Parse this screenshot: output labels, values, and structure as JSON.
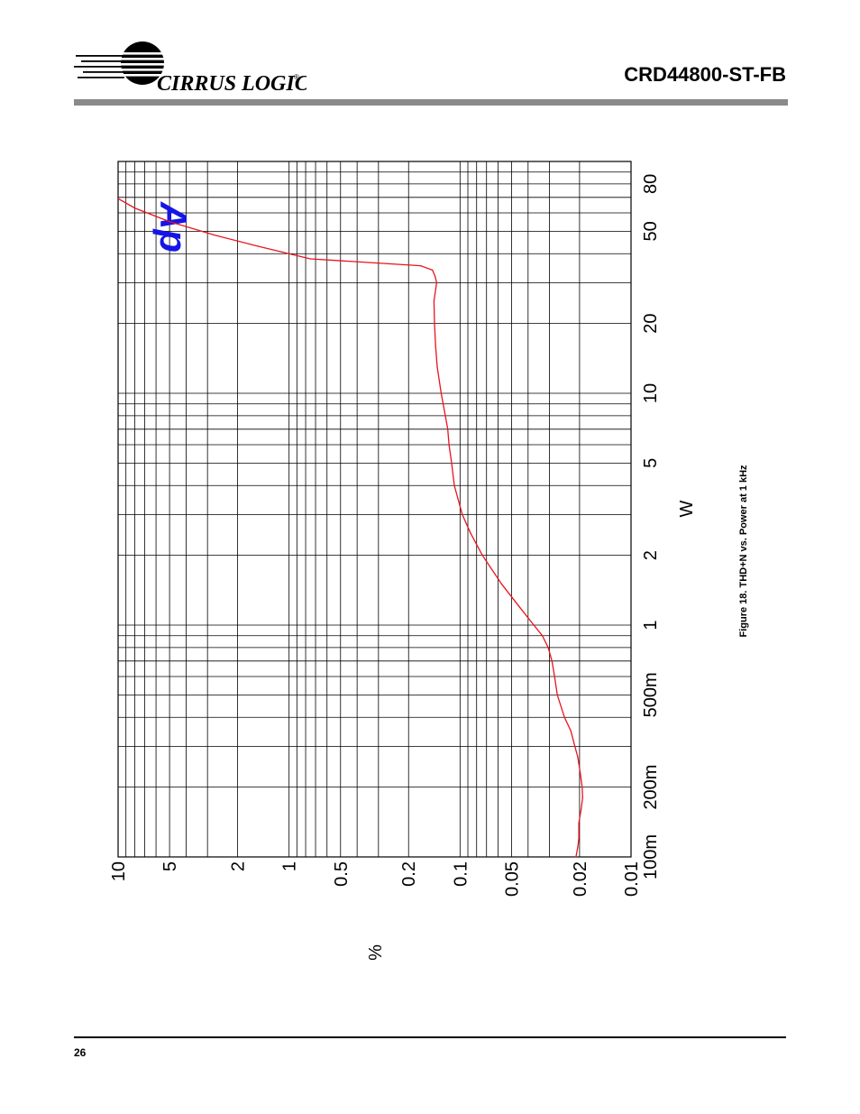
{
  "header": {
    "brand": "CIRRUS LOGIC",
    "brand_mark": "®",
    "doc_title": "CRD44800-ST-FB"
  },
  "footer": {
    "page_number": "26"
  },
  "figure": {
    "caption": "Figure 18.  THD+N vs. Power at 1 kHz"
  },
  "chart_data": {
    "type": "line",
    "title": "",
    "xlabel": "W",
    "ylabel": "%",
    "x_scale": "log",
    "y_scale": "log",
    "xlim": [
      0.1,
      100
    ],
    "ylim": [
      0.01,
      10
    ],
    "grid": true,
    "orientation": "rotated 90° counter-clockwise on page",
    "x_ticks": [
      {
        "v": 0.1,
        "label": "100m"
      },
      {
        "v": 0.2,
        "label": "200m"
      },
      {
        "v": 0.5,
        "label": "500m"
      },
      {
        "v": 1,
        "label": "1"
      },
      {
        "v": 2,
        "label": "2"
      },
      {
        "v": 5,
        "label": "5"
      },
      {
        "v": 10,
        "label": "10"
      },
      {
        "v": 20,
        "label": "20"
      },
      {
        "v": 50,
        "label": "50"
      },
      {
        "v": 80,
        "label": "80"
      }
    ],
    "y_ticks": [
      {
        "v": 10,
        "label": "10"
      },
      {
        "v": 5,
        "label": "5"
      },
      {
        "v": 2,
        "label": "2"
      },
      {
        "v": 1,
        "label": "1"
      },
      {
        "v": 0.5,
        "label": "0.5"
      },
      {
        "v": 0.2,
        "label": "0.2"
      },
      {
        "v": 0.1,
        "label": "0.1"
      },
      {
        "v": 0.05,
        "label": "0.05"
      },
      {
        "v": 0.02,
        "label": "0.02"
      },
      {
        "v": 0.01,
        "label": "0.01"
      }
    ],
    "watermark": "Ap",
    "colors": {
      "series": "#e8141c",
      "grid": "#000000",
      "watermark": "#1515e6"
    },
    "series": [
      {
        "x": [
          0.1,
          0.11,
          0.12,
          0.14,
          0.16,
          0.18,
          0.2,
          0.23,
          0.27,
          0.3,
          0.35,
          0.4,
          0.5,
          0.6,
          0.7,
          0.8,
          0.9,
          1.0,
          1.2,
          1.5,
          2.0,
          2.5,
          3.0,
          4.0,
          5.0,
          6.0,
          7.0,
          8.0,
          10,
          13,
          16,
          20,
          25,
          30,
          32,
          34,
          35.5,
          38,
          43,
          48,
          55,
          63,
          72
        ],
        "y": [
          0.021,
          0.0205,
          0.0202,
          0.0202,
          0.0196,
          0.0192,
          0.0193,
          0.0198,
          0.0205,
          0.0213,
          0.0225,
          0.0245,
          0.027,
          0.028,
          0.029,
          0.0305,
          0.033,
          0.037,
          0.045,
          0.057,
          0.074,
          0.087,
          0.097,
          0.108,
          0.112,
          0.116,
          0.118,
          0.122,
          0.129,
          0.136,
          0.139,
          0.141,
          0.142,
          0.137,
          0.14,
          0.145,
          0.17,
          0.75,
          1.5,
          2.7,
          5.0,
          8.0,
          11.0
        ]
      }
    ]
  }
}
